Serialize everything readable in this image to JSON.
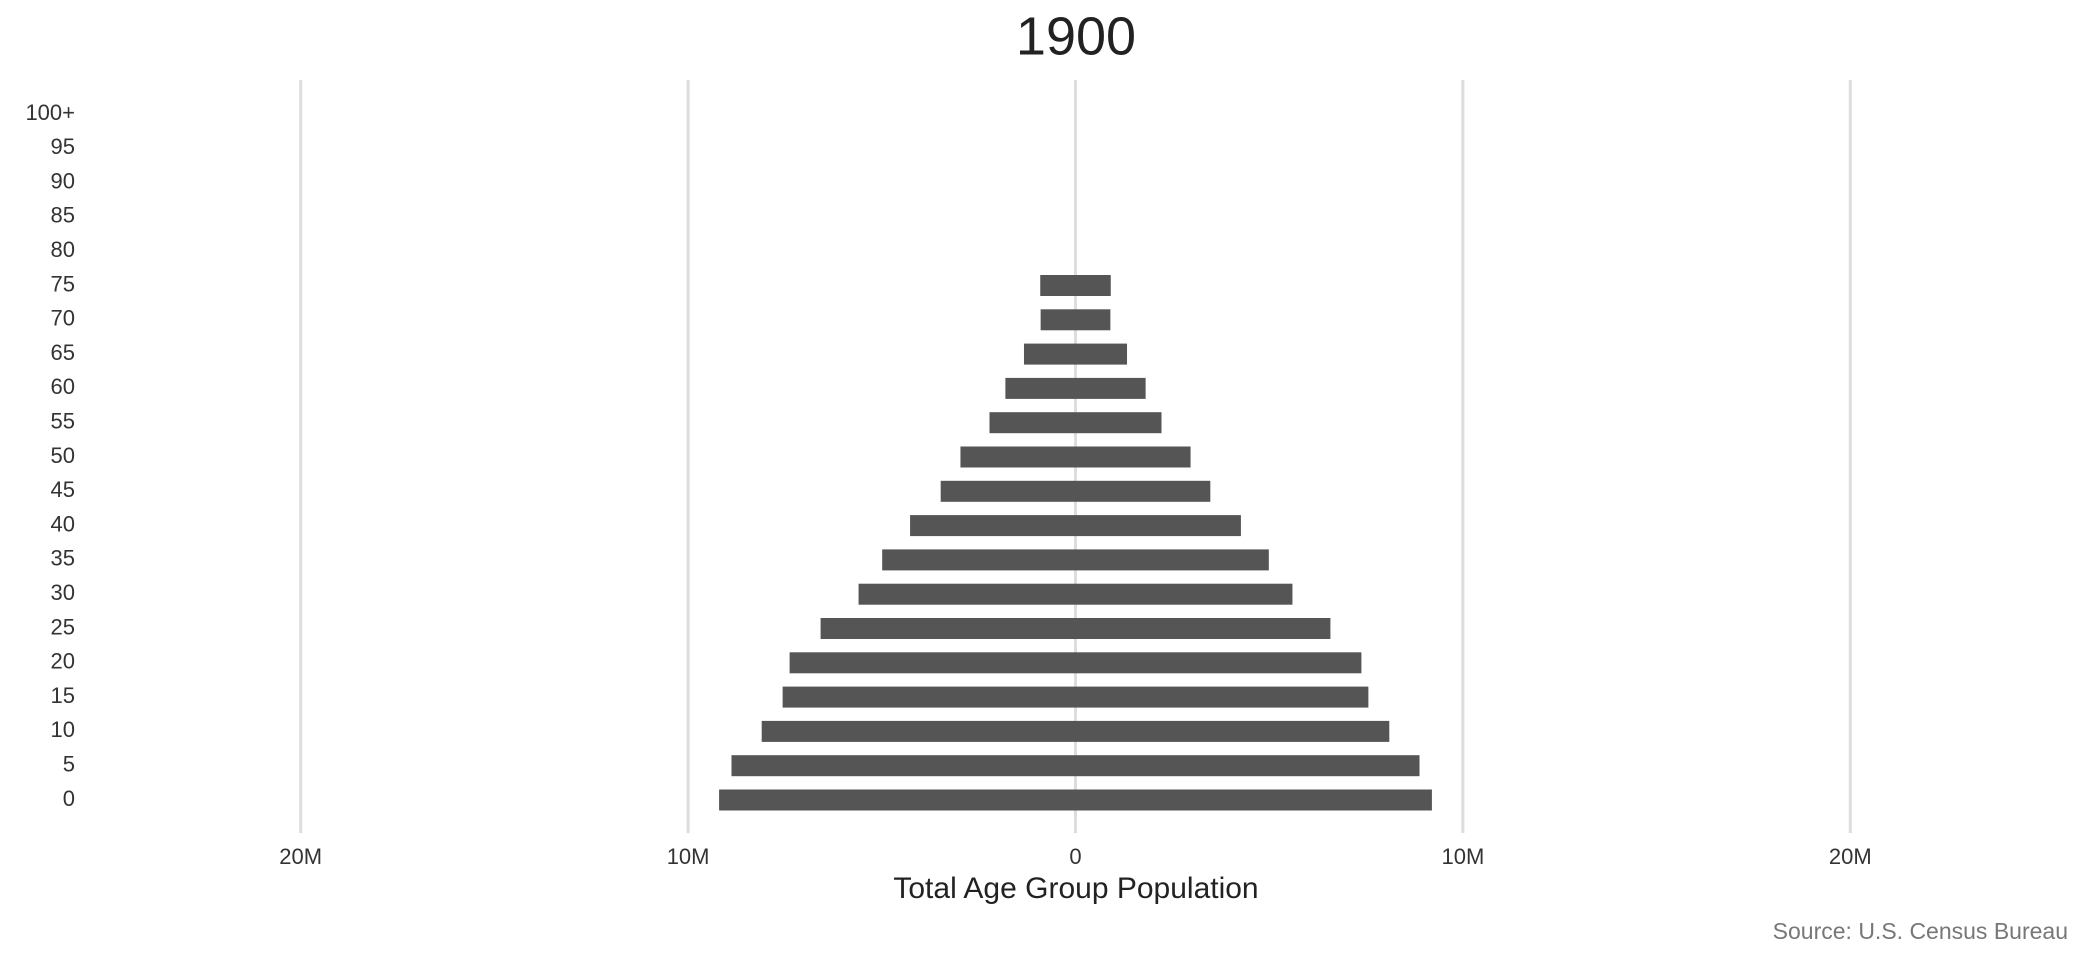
{
  "chart_data": {
    "type": "bar",
    "orientation": "horizontal",
    "mirrored": true,
    "title": "1900",
    "x_label": "Total Age Group Population",
    "source": "Source: U.S. Census Bureau",
    "color": "#555555",
    "grid": true,
    "categories": [
      "0",
      "5",
      "10",
      "15",
      "20",
      "25",
      "30",
      "35",
      "40",
      "45",
      "50",
      "55",
      "60",
      "65",
      "70",
      "75",
      "80",
      "85",
      "90",
      "95",
      "100+"
    ],
    "values": [
      9200000,
      8880000,
      8100000,
      7560000,
      7380000,
      6580000,
      5600000,
      4990000,
      4270000,
      3480000,
      2970000,
      2220000,
      1810000,
      1330000,
      900000.0,
      910000.0,
      0,
      0,
      0,
      0,
      0
    ],
    "xlim": [
      -25000000,
      25000000
    ],
    "xticks": [
      {
        "value": -20000000,
        "label": "20M"
      },
      {
        "value": -10000000,
        "label": "10M"
      },
      0,
      {
        "value": 10000000,
        "label": "10M"
      },
      {
        "value": 20000000,
        "label": "20M"
      }
    ]
  }
}
